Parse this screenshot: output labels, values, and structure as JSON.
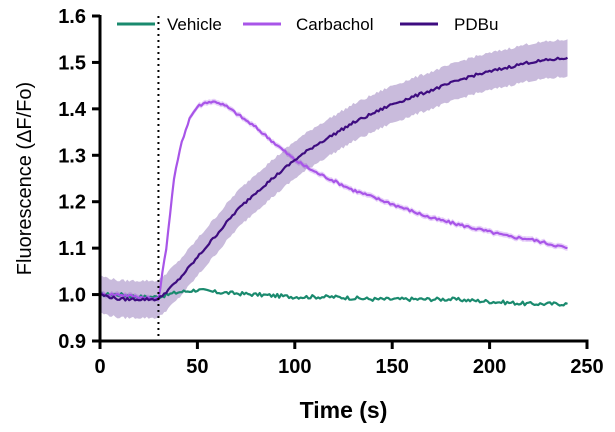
{
  "chart_data": {
    "type": "line",
    "xlabel": "Time (s)",
    "ylabel": "Fluorescence (ΔF/Fo)",
    "xlim": [
      0,
      250
    ],
    "ylim": [
      0.9,
      1.6
    ],
    "x_ticks": [
      "0",
      "50",
      "100",
      "150",
      "200",
      "250"
    ],
    "y_ticks": [
      "0.9",
      "1.0",
      "1.1",
      "1.2",
      "1.3",
      "1.4",
      "1.5",
      "1.6"
    ],
    "legend_position": "top",
    "grid": false,
    "annotations": [
      {
        "type": "vertical-dotted-line",
        "x": 30
      }
    ],
    "series": [
      {
        "name": "Vehicle",
        "color": "#1a8a6e",
        "x": [
          0,
          10,
          20,
          30,
          40,
          50,
          60,
          80,
          100,
          120,
          140,
          160,
          180,
          200,
          220,
          240
        ],
        "values": [
          1.0,
          1.0,
          0.995,
          0.995,
          1.005,
          1.01,
          1.005,
          1.0,
          0.995,
          0.995,
          0.99,
          0.99,
          0.99,
          0.985,
          0.98,
          0.98
        ],
        "error": 0
      },
      {
        "name": "Carbachol",
        "color": "#a855e8",
        "x": [
          0,
          10,
          20,
          30,
          34,
          38,
          42,
          46,
          50,
          55,
          60,
          65,
          70,
          80,
          90,
          100,
          110,
          120,
          130,
          140,
          150,
          160,
          170,
          180,
          190,
          200,
          210,
          220,
          230,
          240
        ],
        "values": [
          1.0,
          1.0,
          0.995,
          0.99,
          1.1,
          1.25,
          1.33,
          1.38,
          1.405,
          1.415,
          1.415,
          1.405,
          1.39,
          1.36,
          1.325,
          1.29,
          1.265,
          1.245,
          1.225,
          1.21,
          1.195,
          1.18,
          1.165,
          1.155,
          1.145,
          1.135,
          1.125,
          1.12,
          1.11,
          1.1
        ],
        "error": 0.006
      },
      {
        "name": "PDBu",
        "color": "#3e0c80",
        "x": [
          0,
          10,
          20,
          30,
          40,
          50,
          60,
          70,
          80,
          90,
          100,
          110,
          120,
          130,
          140,
          150,
          160,
          170,
          180,
          190,
          200,
          210,
          220,
          230,
          240
        ],
        "values": [
          1.0,
          0.99,
          0.99,
          0.99,
          1.03,
          1.08,
          1.13,
          1.18,
          1.22,
          1.255,
          1.29,
          1.32,
          1.345,
          1.37,
          1.39,
          1.41,
          1.425,
          1.44,
          1.455,
          1.47,
          1.48,
          1.49,
          1.5,
          1.505,
          1.51
        ],
        "error": 0.04
      }
    ]
  }
}
